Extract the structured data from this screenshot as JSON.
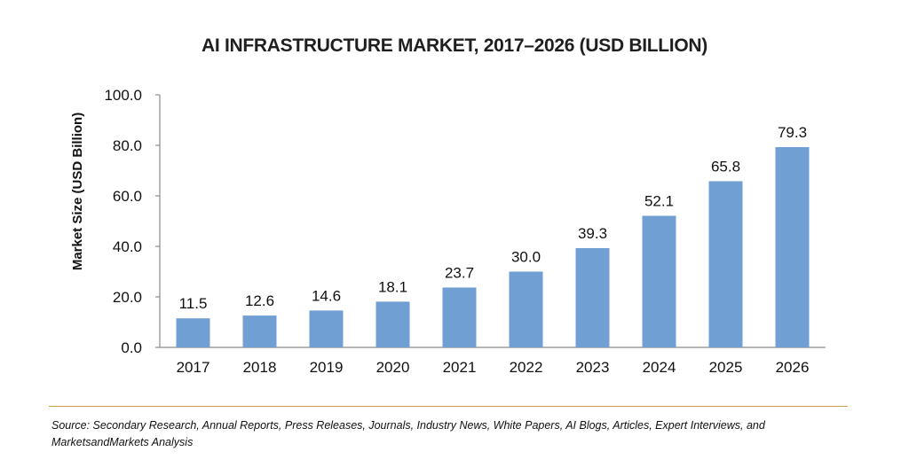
{
  "chart_data": {
    "type": "bar",
    "title": "AI INFRASTRUCTURE MARKET, 2017–2026 (USD BILLION)",
    "xlabel": "",
    "ylabel": "Market Size (USD Billion)",
    "categories": [
      "2017",
      "2018",
      "2019",
      "2020",
      "2021",
      "2022",
      "2023",
      "2024",
      "2025",
      "2026"
    ],
    "values": [
      11.5,
      12.6,
      14.6,
      18.1,
      23.7,
      30.0,
      39.3,
      52.1,
      65.8,
      79.3
    ],
    "value_labels": [
      "11.5",
      "12.6",
      "14.6",
      "18.1",
      "23.7",
      "30.0",
      "39.3",
      "52.1",
      "65.8",
      "79.3"
    ],
    "ylim": [
      0,
      100
    ],
    "yticks": [
      "0.0",
      "20.0",
      "40.0",
      "60.0",
      "80.0",
      "100.0"
    ],
    "grid": false,
    "bar_color": "#6f9fd3"
  },
  "source": "Source: Secondary Research, Annual Reports, Press Releases, Journals, Industry News, White Papers, AI Blogs, Articles, Expert Interviews, and MarketsandMarkets Analysis"
}
